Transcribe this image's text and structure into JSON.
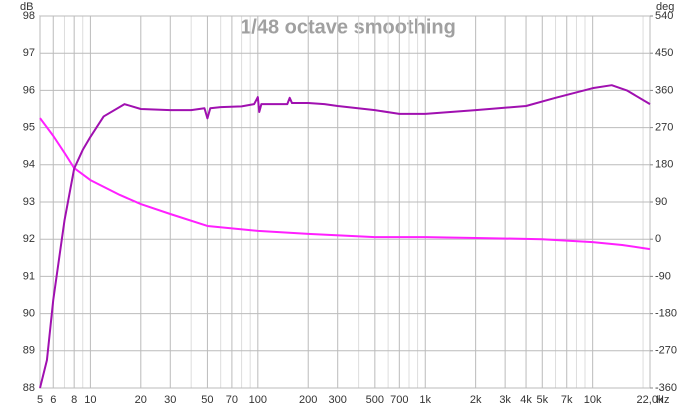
{
  "chart_data": {
    "type": "line",
    "title": "1/48 octave smoothing",
    "x_unit": "Hz",
    "y_unit": "dB",
    "y2_unit": "deg",
    "xscale": "log",
    "xlim": [
      5,
      22000
    ],
    "xticks": [
      5,
      6,
      8,
      10,
      20,
      30,
      50,
      70,
      100,
      200,
      300,
      500,
      700,
      {
        "value": 1000,
        "label": "1k"
      },
      {
        "value": 2000,
        "label": "2k"
      },
      {
        "value": 3000,
        "label": "3k"
      },
      {
        "value": 4000,
        "label": "4k"
      },
      {
        "value": 5000,
        "label": "5k"
      },
      {
        "value": 7000,
        "label": "7k"
      },
      {
        "value": 10000,
        "label": "10k"
      },
      {
        "value": 22000,
        "label": "22,0k"
      }
    ],
    "x_minor_grid": [
      7,
      9,
      40,
      60,
      80,
      90,
      400,
      600,
      800,
      900,
      6000,
      8000,
      9000,
      20000
    ],
    "ylim": [
      88,
      98
    ],
    "yticks": [
      88,
      89,
      90,
      91,
      92,
      93,
      94,
      95,
      96,
      97,
      98
    ],
    "y2lim": [
      -360,
      540
    ],
    "y2ticks": [
      -360,
      -270,
      -180,
      -90,
      0,
      90,
      180,
      270,
      360,
      450,
      540
    ],
    "grid": true,
    "series": [
      {
        "color": "#a010b0",
        "x": [
          5,
          5.5,
          6,
          7,
          8,
          9,
          10,
          12,
          16,
          20,
          30,
          40,
          48,
          50,
          52,
          60,
          80,
          95,
          100,
          102,
          105,
          150,
          155,
          160,
          200,
          250,
          300,
          500,
          700,
          1000,
          2000,
          4000,
          6000,
          10000,
          13000,
          16000,
          22000
        ],
        "values": [
          88,
          88.75,
          90.37,
          92.5,
          93.9,
          94.4,
          94.75,
          95.3,
          95.63,
          95.5,
          95.47,
          95.47,
          95.52,
          95.25,
          95.52,
          95.55,
          95.57,
          95.63,
          95.82,
          95.42,
          95.63,
          95.63,
          95.8,
          95.66,
          95.66,
          95.63,
          95.58,
          95.47,
          95.37,
          95.37,
          95.47,
          95.58,
          95.8,
          96.06,
          96.14,
          96.0,
          95.63
        ]
      },
      {
        "color": "#ff20ff",
        "axis": "y2",
        "x": [
          5,
          6,
          7,
          8,
          10,
          15,
          20,
          30,
          50,
          100,
          200,
          500,
          1000,
          2000,
          5000,
          10000,
          15000,
          22000
        ],
        "values": [
          293,
          250,
          209,
          172,
          143,
          107,
          85,
          61,
          32,
          20,
          13,
          5,
          5,
          3,
          0,
          -7,
          -14,
          -24
        ]
      }
    ]
  }
}
